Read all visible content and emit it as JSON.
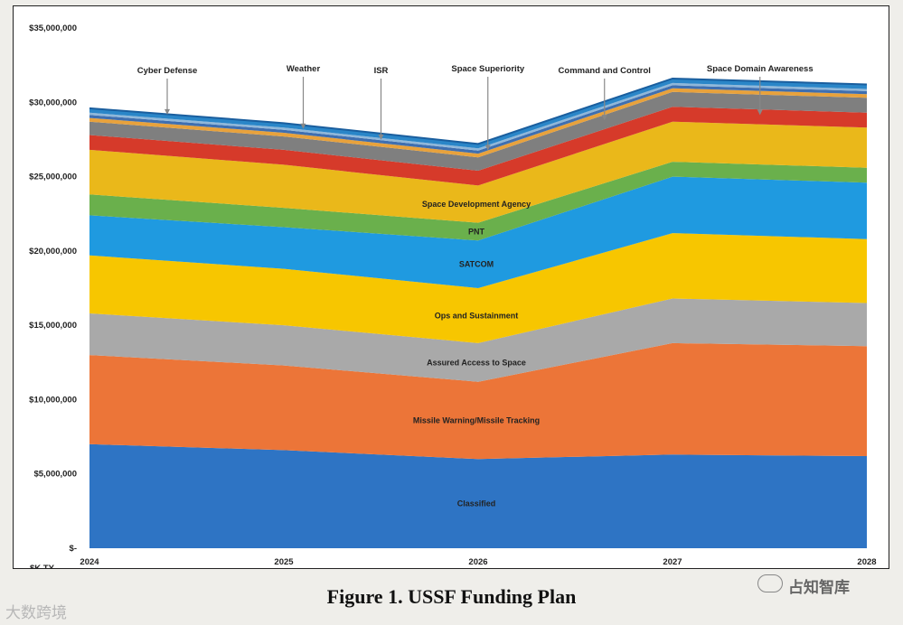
{
  "figure": {
    "caption": "Figure 1. USSF Funding Plan"
  },
  "watermarks": {
    "left": "大数跨境",
    "right": "占知智库"
  },
  "colors": {
    "Classified": "#2e74c4",
    "Missile Warning/Missile Tracking": "#ec7538",
    "Assured Access to Space": "#a9a9a9",
    "Ops and Sustainment": "#f7c600",
    "SATCOM": "#1f9ae0",
    "PNT": "#6ab04c",
    "Space Development Agency": "#eab81a",
    "Space Domain Awareness": "#d63a2a",
    "Command and Control": "#7f7f7f",
    "Space Superiority": "#e8a23c",
    "ISR": "#3f6fb0",
    "Weather": "#8fb7d9",
    "Cyber Defense": "#2a86c8"
  },
  "chart_data": {
    "type": "area",
    "stacked": true,
    "title": "",
    "xlabel": "",
    "ylabel": "$K TY",
    "ylim": [
      0,
      35000000
    ],
    "x": [
      "2024",
      "2025",
      "2026",
      "2027",
      "2028"
    ],
    "yticks": [
      0,
      5000000,
      10000000,
      15000000,
      20000000,
      25000000,
      30000000,
      35000000
    ],
    "ytick_labels": [
      "$-",
      "$5,000,000",
      "$10,000,000",
      "$15,000,000",
      "$20,000,000",
      "$25,000,000",
      "$30,000,000",
      "$35,000,000"
    ],
    "series": [
      {
        "name": "Classified",
        "label": "Classified",
        "values": [
          7000000,
          6600000,
          6000000,
          6300000,
          6200000
        ]
      },
      {
        "name": "Missile Warning/Missile Tracking",
        "label": "Missile Warning/Missile Tracking",
        "values": [
          6000000,
          5700000,
          5200000,
          7500000,
          7400000
        ]
      },
      {
        "name": "Assured Access to Space",
        "label": "Assured Access to Space",
        "values": [
          2800000,
          2700000,
          2600000,
          3000000,
          2900000
        ]
      },
      {
        "name": "Ops and Sustainment",
        "label": "Ops and Sustainment",
        "values": [
          3900000,
          3800000,
          3700000,
          4400000,
          4300000
        ]
      },
      {
        "name": "SATCOM",
        "label": "SATCOM",
        "values": [
          2700000,
          2800000,
          3200000,
          3800000,
          3800000
        ]
      },
      {
        "name": "PNT",
        "label": "PNT",
        "values": [
          1400000,
          1300000,
          1200000,
          1000000,
          1000000
        ]
      },
      {
        "name": "Space Development Agency",
        "label": "Space Development Agency",
        "values": [
          3000000,
          2900000,
          2500000,
          2700000,
          2700000
        ]
      },
      {
        "name": "Space Domain Awareness",
        "label": "",
        "values": [
          1000000,
          1000000,
          1000000,
          1000000,
          1000000
        ]
      },
      {
        "name": "Command and Control",
        "label": "",
        "values": [
          900000,
          900000,
          900000,
          1000000,
          1000000
        ]
      },
      {
        "name": "Space Superiority",
        "label": "",
        "values": [
          250000,
          250000,
          250000,
          250000,
          250000
        ]
      },
      {
        "name": "ISR",
        "label": "",
        "values": [
          200000,
          200000,
          200000,
          200000,
          200000
        ]
      },
      {
        "name": "Weather",
        "label": "",
        "values": [
          150000,
          150000,
          150000,
          150000,
          150000
        ]
      },
      {
        "name": "Cyber Defense",
        "label": "",
        "values": [
          300000,
          300000,
          300000,
          300000,
          300000
        ]
      }
    ],
    "annotations": [
      {
        "text": "Cyber Defense",
        "series": "Cyber Defense",
        "at_x": 0.4
      },
      {
        "text": "Weather",
        "series": "Weather",
        "at_x": 1.1
      },
      {
        "text": "ISR",
        "series": "ISR",
        "at_x": 1.5
      },
      {
        "text": "Space Superiority",
        "series": "Space Superiority",
        "at_x": 2.05
      },
      {
        "text": "Command and Control",
        "series": "Command and Control",
        "at_x": 2.65
      },
      {
        "text": "Space Domain Awareness",
        "series": "Space Domain Awareness",
        "at_x": 3.45
      }
    ]
  }
}
